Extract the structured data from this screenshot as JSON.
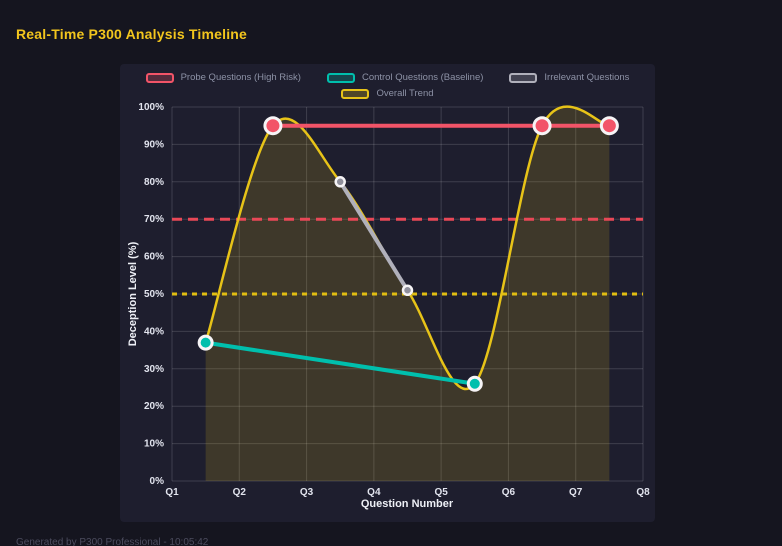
{
  "page": {
    "title": "Real-Time P300 Analysis Timeline",
    "footer": "Generated by P300 Professional - 10:05:42"
  },
  "colors": {
    "background": "#15151f",
    "panel": "#1e1e2e",
    "title": "#f2c51d",
    "grid": "rgba(255,255,255,0.15)",
    "tick_text": "#e2e4ee",
    "legend_text": "#8d92a6"
  },
  "chart_data": {
    "type": "line",
    "title": "Real-Time P300 Analysis Timeline",
    "xlabel": "Question Number",
    "ylabel": "Deception Level (%)",
    "xlim": [
      1,
      8
    ],
    "ylim": [
      0,
      100
    ],
    "grid": true,
    "legend_position": "top",
    "x_ticks": [
      "Q1",
      "Q2",
      "Q3",
      "Q4",
      "Q5",
      "Q6",
      "Q7",
      "Q8"
    ],
    "y_ticks": [
      "0%",
      "10%",
      "20%",
      "30%",
      "40%",
      "50%",
      "60%",
      "70%",
      "80%",
      "90%",
      "100%"
    ],
    "y_tick_values": [
      0,
      10,
      20,
      30,
      40,
      50,
      60,
      70,
      80,
      90,
      100
    ],
    "x_tick_values": [
      1,
      2,
      3,
      4,
      5,
      6,
      7,
      8
    ],
    "series": [
      {
        "name": "Probe Questions (High Risk)",
        "color": "#f25468",
        "x": [
          2.5,
          6.5,
          7.5
        ],
        "values": [
          95,
          95,
          95
        ],
        "line_width": 4,
        "point_radius": 8,
        "point_stroke": 3,
        "smooth": false
      },
      {
        "name": "Control Questions (Baseline)",
        "color": "#00bfad",
        "x": [
          1.5,
          5.5
        ],
        "values": [
          37,
          26
        ],
        "line_width": 4,
        "point_radius": 6.5,
        "point_stroke": 3,
        "smooth": false
      },
      {
        "name": "Irrelevant Questions",
        "color": "#b0b0bb",
        "point_color": "#8f8f9b",
        "x": [
          3.5,
          4.5
        ],
        "values": [
          80,
          51
        ],
        "line_width": 4,
        "point_radius": 4.5,
        "point_stroke": 2.5,
        "smooth": false
      },
      {
        "name": "Overall Trend",
        "color": "#e7c318",
        "x": [
          1.5,
          2.5,
          3.5,
          4.5,
          5.5,
          6.5,
          7.5
        ],
        "values": [
          37,
          95,
          80,
          51,
          26,
          95,
          95
        ],
        "line_width": 2.5,
        "point_radius": 0,
        "smooth": true,
        "fill": "rgba(231,195,24,0.16)"
      }
    ],
    "reference_lines": [
      {
        "value": 70,
        "color": "#e84857",
        "dash": "10 6",
        "width": 3
      },
      {
        "value": 50,
        "color": "#e0bd12",
        "dash": "5 5",
        "width": 3
      }
    ]
  }
}
